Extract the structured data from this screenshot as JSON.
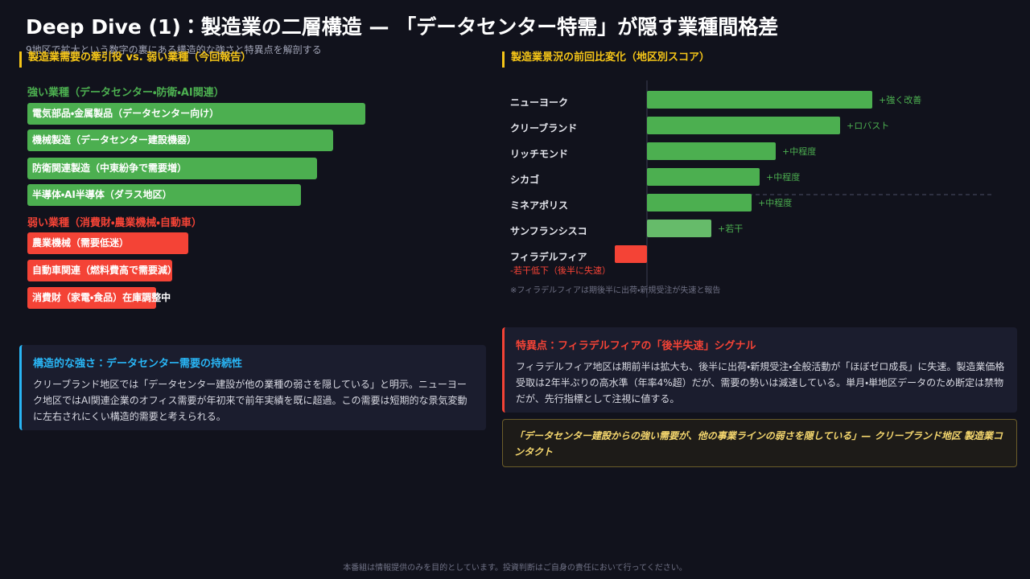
{
  "header": {
    "title": "Deep Dive (1)：製造業の二層構造 — 「データセンター特需」が隠す業種間格差",
    "subtitle": "9地区で拡大という数字の裏にある構造的な強さと特異点を解剖する"
  },
  "left_panel": {
    "heading": "製造業需要の牽引役 vs. 弱い業種（今回報告）",
    "strong_heading": "強い業種（データセンター・防衛・AI関連）",
    "strong_items": [
      "電気部品・金属製品（データセンター向け）",
      "機械製造（データセンター建設機器）",
      "防衛関連製造（中東紛争で需要増）",
      "半導体・AI半導体（ダラス地区）"
    ],
    "weak_heading": "弱い業種（消費財・農業機械・自動車）",
    "weak_items": [
      "農業機械（需要低迷）",
      "自動車関連（燃料費高で需要減）",
      "消費財（家電・食品）在庫調整中"
    ]
  },
  "chart_data": {
    "type": "bar",
    "orientation": "horizontal",
    "title": "製造業景況の前回比変化（地区別スコア）",
    "categories": [
      "ニューヨーク",
      "クリーブランド",
      "リッチモンド",
      "シカゴ",
      "ミネアポリス",
      "サンフランシスコ",
      "フィラデルフィア"
    ],
    "values": [
      7,
      6,
      4,
      3.5,
      3.25,
      2,
      -1
    ],
    "labels": [
      "+強く改善",
      "+ロバスト",
      "+中程度",
      "+中程度",
      "+中程度",
      "+若干",
      "-若干低下（後半に失速）"
    ],
    "colors": [
      "#4caf50",
      "#4caf50",
      "#4caf50",
      "#4caf50",
      "#4caf50",
      "#66bb6a",
      "#f44336"
    ],
    "note": "※フィラデルフィアは期後半に出荷・新規受注が失速と報告"
  },
  "strength_box": {
    "title": "構造的な強さ：データセンター需要の持続性",
    "body": "クリーブランド地区では「データセンター建設が他の業種の弱さを隠している」と明示。ニューヨーク地区ではAI関連企業のオフィス需要が年初来で前年実績を既に超過。この需要は短期的な景気変動に左右されにくい構造的需要と考えられる。"
  },
  "anomaly_box": {
    "title": "特異点：フィラデルフィアの「後半失速」シグナル",
    "body": "フィラデルフィア地区は期前半は拡大も、後半に出荷・新規受注・全般活動が「ほぼゼロ成長」に失速。製造業価格受取は2年半ぶりの高水準（年率4%超）だが、需要の勢いは減速している。単月・単地区データのため断定は禁物だが、先行指標として注視に値する。"
  },
  "quote": "「データセンター建設からの強い需要が、他の事業ラインの弱さを隠している」— クリーブランド地区 製造業コンタクト",
  "footer": "本番組は情報提供のみを目的としています。投資判断はご自身の責任において行ってください。"
}
